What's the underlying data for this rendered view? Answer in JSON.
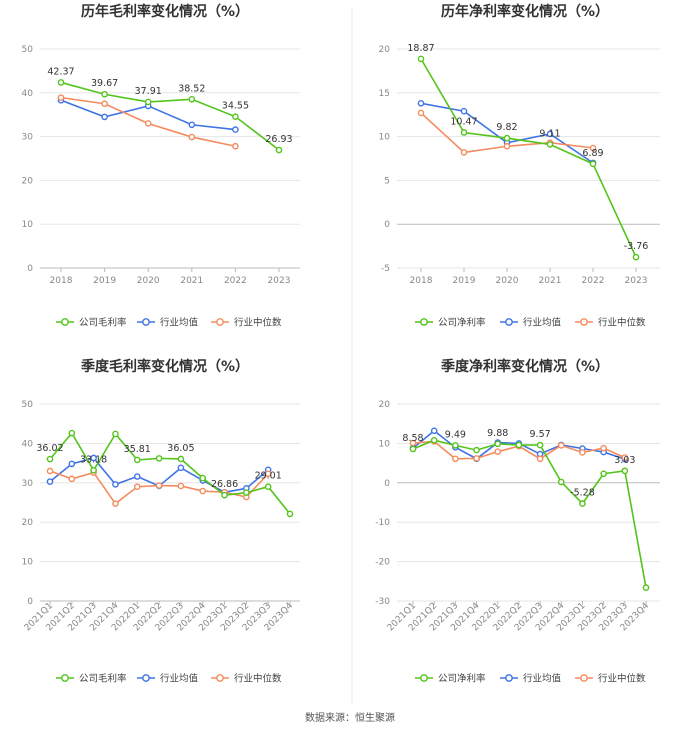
{
  "source_note": "数据来源：恒生聚源",
  "chart_data": [
    {
      "id": "annual-gross",
      "type": "line",
      "title": "历年毛利率变化情况（%）",
      "categories": [
        "2018",
        "2019",
        "2020",
        "2021",
        "2022",
        "2023"
      ],
      "ylim": [
        0,
        50
      ],
      "yticks": [
        0,
        10,
        20,
        30,
        40,
        50
      ],
      "series": [
        {
          "name": "公司毛利率",
          "color": "#52c41a",
          "values": [
            42.37,
            39.67,
            37.91,
            38.52,
            34.55,
            26.93
          ],
          "show_labels": true
        },
        {
          "name": "行业均值",
          "color": "#3f73e5",
          "values": [
            38.3,
            34.5,
            37.0,
            32.7,
            31.6,
            null
          ]
        },
        {
          "name": "行业中位数",
          "color": "#f58b5e",
          "values": [
            38.9,
            37.5,
            33.0,
            29.9,
            27.8,
            null
          ]
        }
      ],
      "data_labels": [
        "42.37",
        "39.67",
        "37.91",
        "38.52",
        "34.55",
        "26.93"
      ]
    },
    {
      "id": "annual-net",
      "type": "line",
      "title": "历年净利率变化情况（%）",
      "categories": [
        "2018",
        "2019",
        "2020",
        "2021",
        "2022",
        "2023"
      ],
      "ylim": [
        -5,
        20
      ],
      "yticks": [
        -5,
        0,
        5,
        10,
        15,
        20
      ],
      "series": [
        {
          "name": "公司净利率",
          "color": "#52c41a",
          "values": [
            18.87,
            10.47,
            9.82,
            9.11,
            6.89,
            -3.76
          ],
          "show_labels": true
        },
        {
          "name": "行业均值",
          "color": "#3f73e5",
          "values": [
            13.8,
            12.9,
            9.3,
            10.3,
            7.0,
            null
          ]
        },
        {
          "name": "行业中位数",
          "color": "#f58b5e",
          "values": [
            12.7,
            8.2,
            8.9,
            9.3,
            8.7,
            null
          ]
        }
      ],
      "data_labels": [
        "18.87",
        "10.47",
        "9.82",
        "9.11",
        "6.89",
        "-3.76"
      ]
    },
    {
      "id": "quarter-gross",
      "type": "line",
      "title": "季度毛利率变化情况（%）",
      "categories": [
        "2021Q1",
        "2021Q2",
        "2021Q3",
        "2021Q4",
        "2022Q1",
        "2022Q2",
        "2022Q3",
        "2022Q4",
        "2023Q1",
        "2023Q2",
        "2023Q3",
        "2023Q4"
      ],
      "ylim": [
        0,
        50
      ],
      "yticks": [
        0,
        10,
        20,
        30,
        40,
        50
      ],
      "series": [
        {
          "name": "公司毛利率",
          "color": "#52c41a",
          "values": [
            36.02,
            42.6,
            33.18,
            42.4,
            35.81,
            36.2,
            36.05,
            31.2,
            26.86,
            27.5,
            29.01,
            22.1
          ]
        },
        {
          "name": "行业均值",
          "color": "#3f73e5",
          "values": [
            30.3,
            34.8,
            36.3,
            29.6,
            31.6,
            29.2,
            33.8,
            30.6,
            27.6,
            28.6,
            33.3,
            null
          ]
        },
        {
          "name": "行业中位数",
          "color": "#f58b5e",
          "values": [
            33.0,
            31.0,
            32.6,
            24.7,
            29.0,
            29.3,
            29.2,
            27.9,
            27.6,
            26.4,
            32.3,
            null
          ]
        }
      ],
      "data_labels": [
        {
          "index": 0,
          "text": "36.02"
        },
        {
          "index": 2,
          "text": "33.18"
        },
        {
          "index": 4,
          "text": "35.81"
        },
        {
          "index": 6,
          "text": "36.05"
        },
        {
          "index": 8,
          "text": "26.86"
        },
        {
          "index": 10,
          "text": "29.01"
        }
      ]
    },
    {
      "id": "quarter-net",
      "type": "line",
      "title": "季度净利率变化情况（%）",
      "categories": [
        "2021Q1",
        "2021Q2",
        "2021Q3",
        "2021Q4",
        "2022Q1",
        "2022Q2",
        "2022Q3",
        "2022Q4",
        "2023Q1",
        "2023Q2",
        "2023Q3",
        "2023Q4"
      ],
      "ylim": [
        -30,
        20
      ],
      "yticks": [
        -30,
        -20,
        -10,
        0,
        10,
        20
      ],
      "series": [
        {
          "name": "公司净利率",
          "color": "#52c41a",
          "values": [
            8.58,
            10.8,
            9.49,
            8.3,
            9.88,
            9.6,
            9.57,
            0.2,
            -5.28,
            2.3,
            3.03,
            -26.6
          ]
        },
        {
          "name": "行业均值",
          "color": "#3f73e5",
          "values": [
            8.8,
            13.2,
            9.0,
            6.1,
            10.2,
            10.0,
            7.3,
            9.6,
            8.7,
            7.8,
            6.0,
            null
          ]
        },
        {
          "name": "行业中位数",
          "color": "#f58b5e",
          "values": [
            10.1,
            10.5,
            6.1,
            6.2,
            7.9,
            9.3,
            6.1,
            9.5,
            7.7,
            8.8,
            6.4,
            null
          ]
        }
      ],
      "data_labels": [
        {
          "index": 0,
          "text": "8.58"
        },
        {
          "index": 2,
          "text": "9.49"
        },
        {
          "index": 4,
          "text": "9.88"
        },
        {
          "index": 6,
          "text": "9.57"
        },
        {
          "index": 8,
          "text": "-5.28"
        },
        {
          "index": 10,
          "text": "3.03"
        }
      ]
    }
  ]
}
